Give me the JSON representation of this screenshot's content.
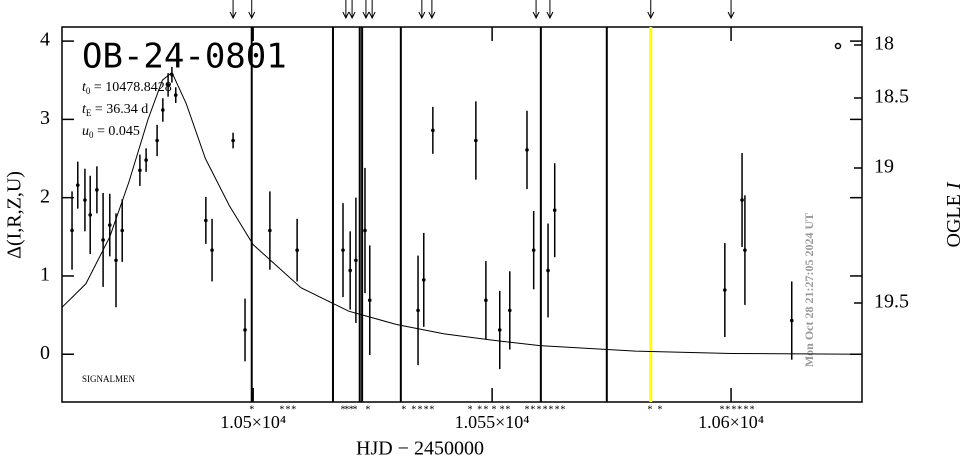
{
  "chart_data": {
    "type": "lightcurve",
    "title": "OB-24-0801",
    "annotations": [
      {
        "var": "t",
        "sub": "0",
        "text": " = 10478.8428"
      },
      {
        "var": "t",
        "sub": "E",
        "text": " = 36.34 d"
      },
      {
        "var": "u",
        "sub": "0",
        "text": " = 0.045"
      }
    ],
    "credit": "SIGNALMEN",
    "timestamp": "Mon Oct 28 21:27:05 2024 UT",
    "xlabel": "HJD − 2450000",
    "ylabel": "Δ(I,R,Z,U)",
    "y2label": {
      "text": "OGLE ",
      "var": "I"
    },
    "xlim": [
      10460,
      10627.4
    ],
    "xticks": [
      {
        "value": 10500,
        "label": "1.05×10⁴"
      },
      {
        "value": 10550,
        "label": "1.055×10⁴"
      },
      {
        "value": 10600,
        "label": "1.06×10⁴"
      }
    ],
    "ylim": [
      -0.61,
      4.18
    ],
    "yticks": [
      0,
      1,
      2,
      3,
      4
    ],
    "y2ticks": [
      18,
      18.5,
      19,
      19.5
    ],
    "data": {
      "color": "#000000",
      "x": [
        10462.1,
        10463.3,
        10464.8,
        10465.9,
        10467.3,
        10468.6,
        10470.0,
        10471.3,
        10472.6,
        10476.3,
        10477.6,
        10479.9,
        10481.1,
        10482.2,
        10483.0,
        10483.8,
        10490.1,
        10491.4,
        10495.8,
        10498.3,
        10503.5,
        10509.2,
        10518.8,
        10520.3,
        10521.5,
        10523.4,
        10524.4,
        10534.5,
        10535.7,
        10537.6,
        10546.6,
        10548.7,
        10551.6,
        10553.7,
        10557.3,
        10558.7,
        10561.7,
        10563.1,
        10598.7,
        10602.3,
        10602.9,
        10612.7
      ],
      "values": [
        1.58,
        2.16,
        1.97,
        1.78,
        2.1,
        1.46,
        1.65,
        1.2,
        1.58,
        2.35,
        2.48,
        2.73,
        3.12,
        3.44,
        3.57,
        3.31,
        1.71,
        1.33,
        2.73,
        0.31,
        1.58,
        1.33,
        1.33,
        1.07,
        1.2,
        1.58,
        0.69,
        0.56,
        0.95,
        2.86,
        2.73,
        0.69,
        0.31,
        0.56,
        2.61,
        1.33,
        1.07,
        1.84,
        0.82,
        1.97,
        1.33,
        0.43
      ],
      "errors": [
        0.5,
        0.3,
        0.4,
        0.5,
        0.3,
        0.6,
        0.4,
        0.6,
        0.4,
        0.2,
        0.15,
        0.2,
        0.15,
        0.15,
        0.1,
        0.1,
        0.3,
        0.4,
        0.1,
        0.4,
        0.5,
        0.4,
        0.6,
        0.5,
        0.8,
        0.8,
        0.7,
        0.7,
        0.6,
        0.3,
        0.5,
        0.5,
        0.5,
        0.5,
        0.5,
        0.5,
        0.6,
        0.6,
        0.6,
        0.6,
        0.7,
        0.5
      ]
    },
    "model": {
      "color": "#000000",
      "x": [
        10460,
        10465,
        10470,
        10474,
        10478,
        10481,
        10483,
        10486,
        10490,
        10495,
        10500,
        10510,
        10520,
        10530,
        10540,
        10550,
        10560,
        10580,
        10600,
        10627.4
      ],
      "values": [
        0.6,
        0.9,
        1.5,
        2.2,
        3.0,
        3.5,
        3.6,
        3.2,
        2.5,
        1.9,
        1.4,
        0.85,
        0.55,
        0.38,
        0.26,
        0.18,
        0.11,
        0.04,
        0.01,
        0
      ]
    },
    "vlines": [
      10499.7,
      10516.7,
      10522.3,
      10522.8,
      10530.9,
      10560.2,
      10574.0
    ],
    "highlight": {
      "x": 10583.2,
      "color": "#ffff00"
    },
    "arrows": [
      10495.8,
      10499.7,
      10519.4,
      10520.7,
      10523.6,
      10524.9,
      10535.3,
      10537.4,
      10559.2,
      10562.1,
      10583.2,
      10600.0
    ],
    "star_label": "*",
    "stars": [
      10499.7,
      10506.0,
      10507.3,
      10508.5,
      10518.8,
      10519.6,
      10520.5,
      10521.3,
      10524.0,
      10531.5,
      10533.6,
      10534.9,
      10536.2,
      10537.4,
      10545.4,
      10547.4,
      10548.7,
      10550.4,
      10552.1,
      10553.3,
      10557.3,
      10558.5,
      10559.8,
      10561.1,
      10562.3,
      10563.6,
      10564.8,
      10583.0,
      10585.1,
      10598.1,
      10599.3,
      10600.6,
      10601.8,
      10603.1,
      10604.4
    ]
  }
}
